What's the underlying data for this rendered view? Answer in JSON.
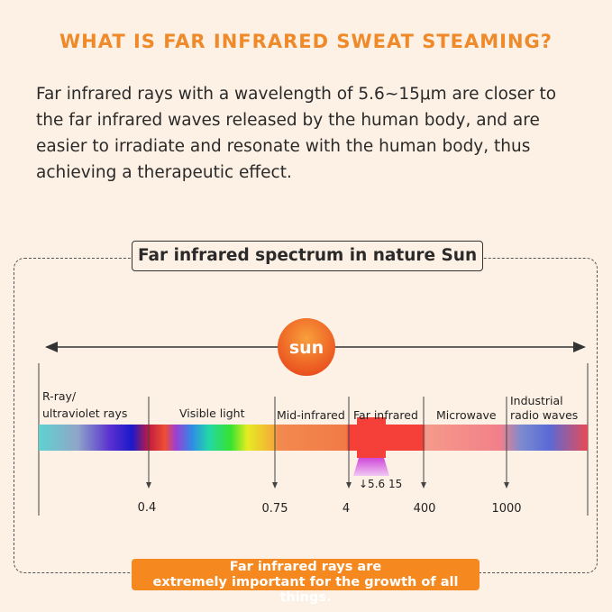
{
  "title": "WHAT IS FAR INFRARED SWEAT STEAMING?",
  "intro": "Far infrared rays with a wavelength of 5.6~15μm are closer to the far infrared waves released by the human body, and are easier to irradiate and resonate with the human body, thus achieving a therapeutic effect.",
  "spectrum": {
    "heading": "Far infrared spectrum in nature Sun",
    "sun_label": "sun",
    "bands": [
      {
        "line1": "R-ray/",
        "line2": "ultraviolet rays"
      },
      {
        "line1": "Visible light"
      },
      {
        "line1": "Mid-infrared"
      },
      {
        "line1": "Far infrared"
      },
      {
        "line1": "Microwave"
      },
      {
        "line1": "Industrial",
        "line2": "radio waves"
      }
    ],
    "ticks": [
      "0.4",
      "0.75",
      "4",
      "400",
      "1000"
    ],
    "highlight_label": "↓5.6 15"
  },
  "footer": {
    "line1": "Far infrared rays are",
    "line2": "extremely important for the growth of all things."
  },
  "colors": {
    "accent": "#ef8a2a",
    "far_infrared_red": "#f5403a"
  }
}
